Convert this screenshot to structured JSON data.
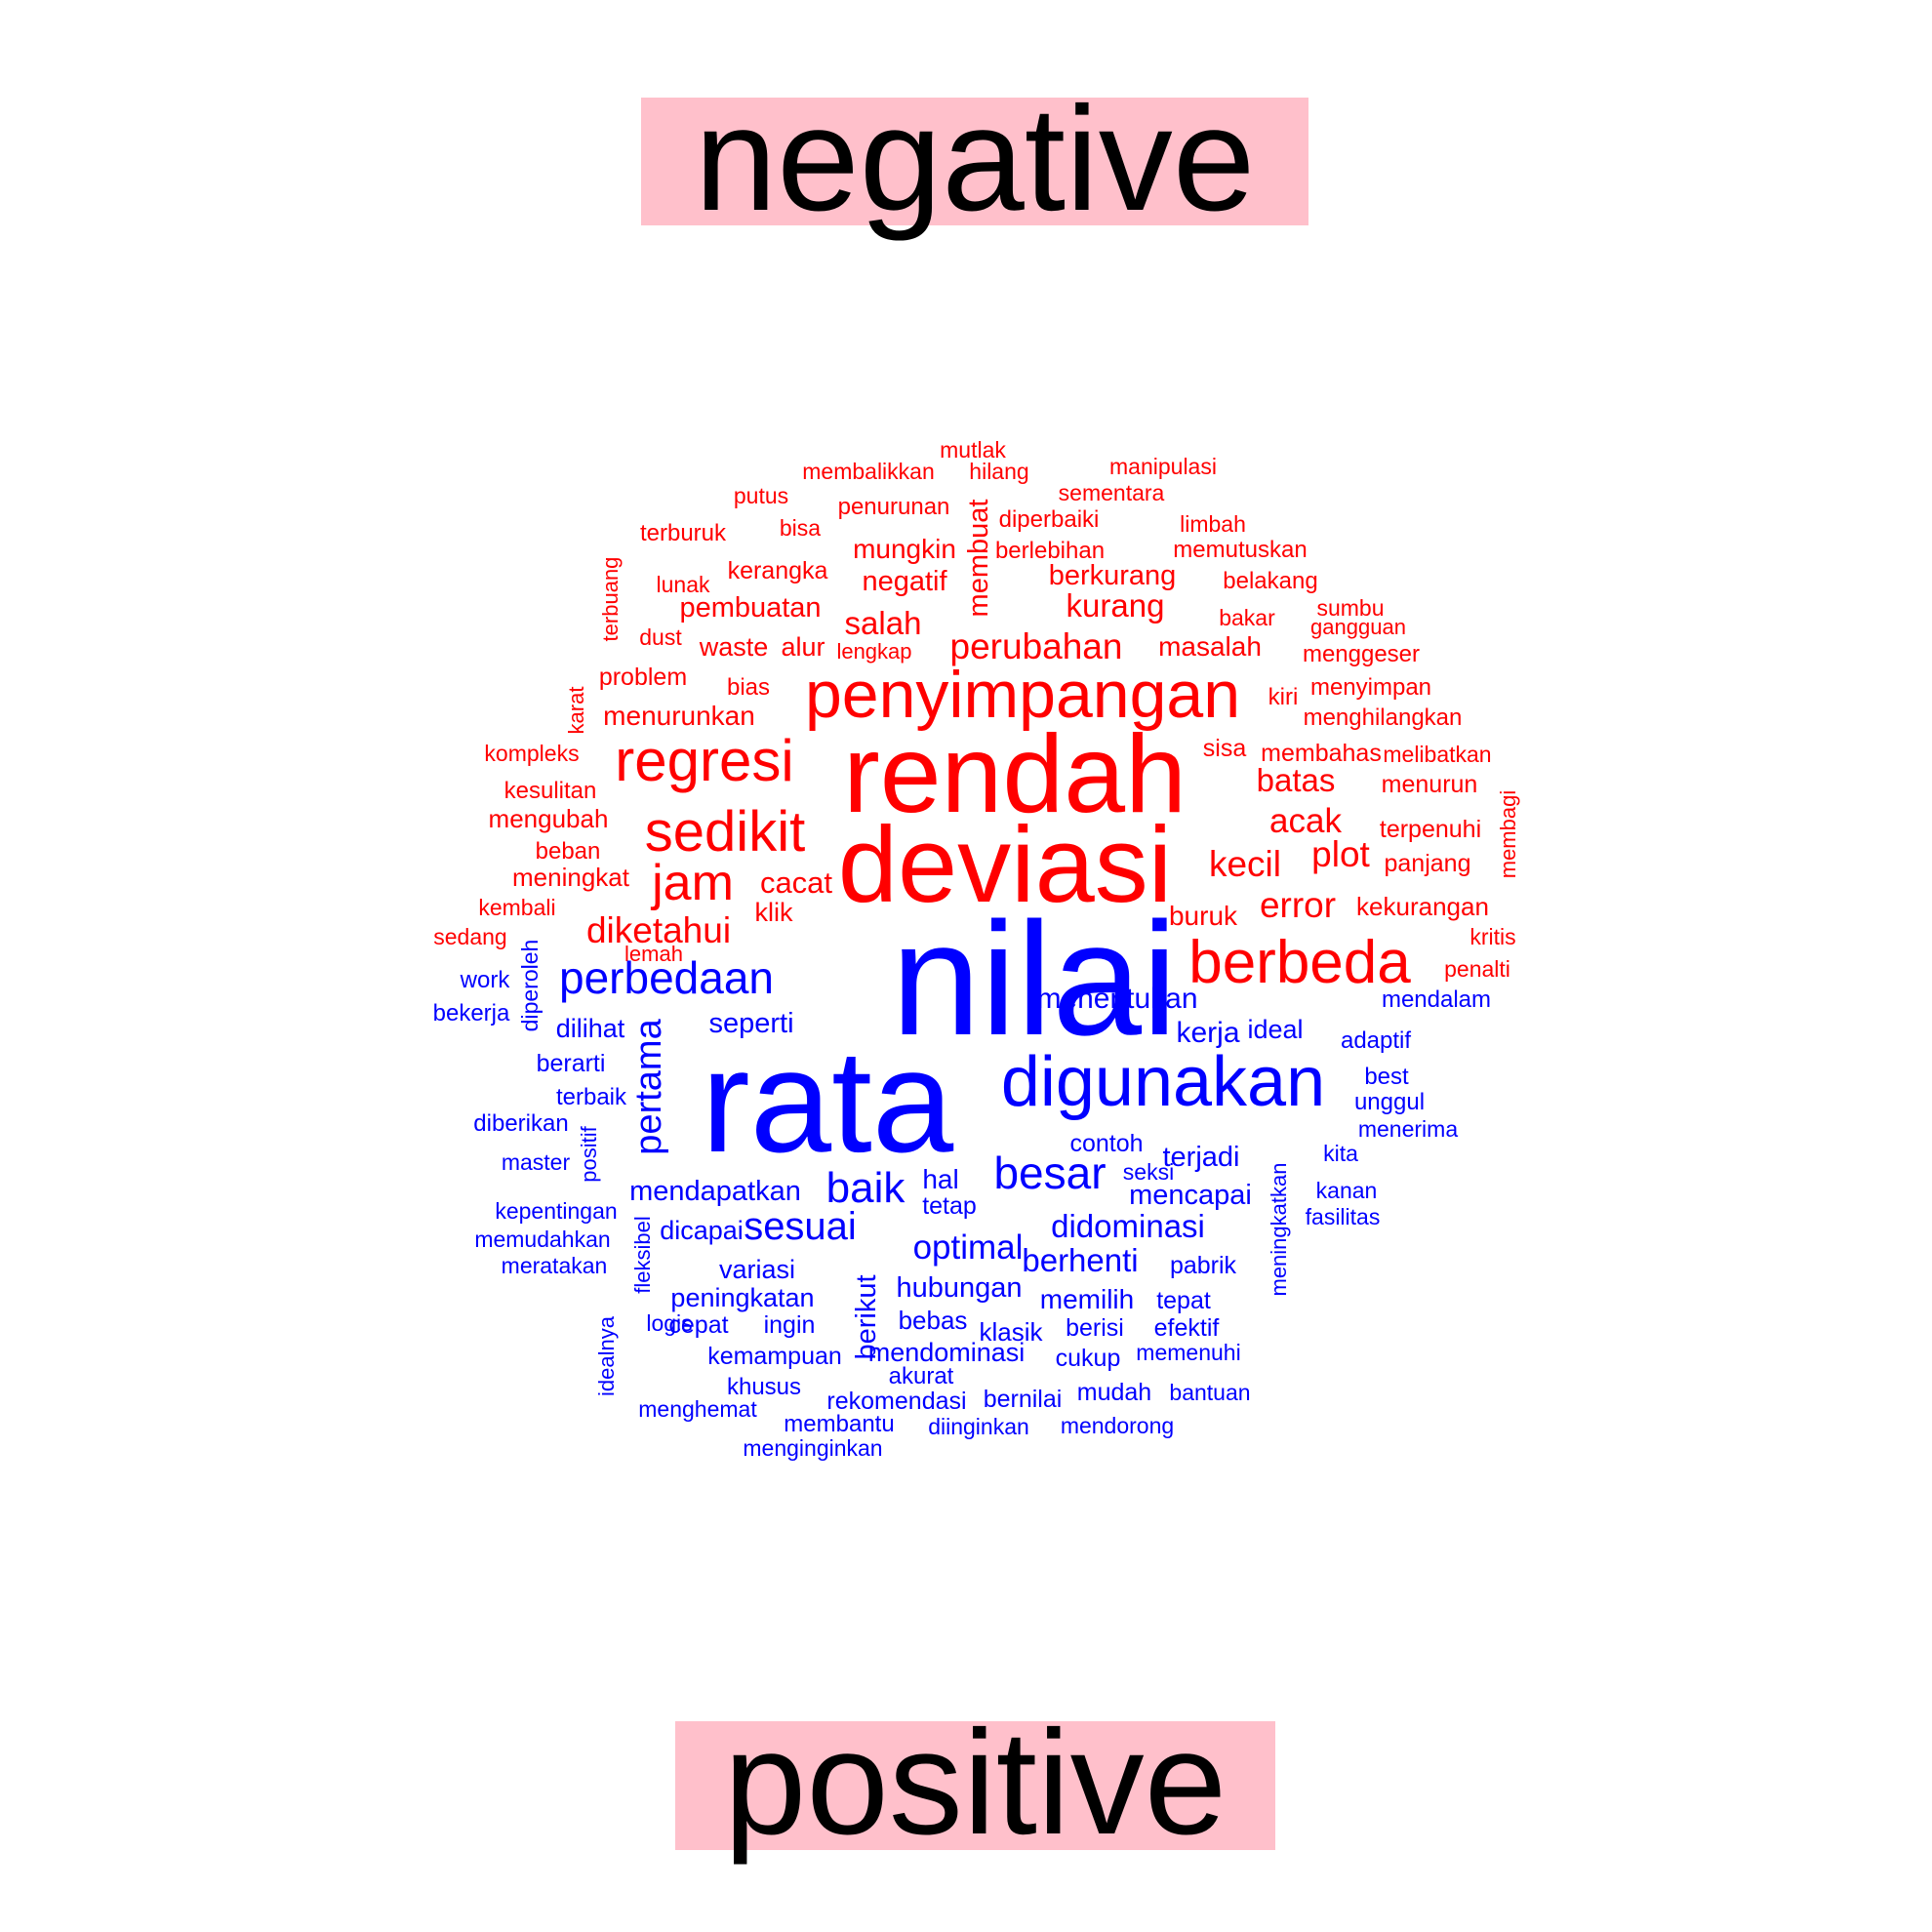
{
  "colors": {
    "negative": "#ff0000",
    "positive": "#0000ff",
    "label_bg": "#ffc0cb"
  },
  "chart_data": {
    "type": "wordcloud",
    "groups": [
      {
        "name": "negative",
        "color": "#ff0000"
      },
      {
        "name": "positive",
        "color": "#0000ff"
      }
    ],
    "words": [
      {
        "t": "rendah",
        "g": "negative",
        "w": 100
      },
      {
        "t": "deviasi",
        "g": "negative",
        "w": 97
      },
      {
        "t": "penyimpangan",
        "g": "negative",
        "w": 68
      },
      {
        "t": "regresi",
        "g": "negative",
        "w": 60
      },
      {
        "t": "sedikit",
        "g": "negative",
        "w": 58
      },
      {
        "t": "berbeda",
        "g": "negative",
        "w": 60
      },
      {
        "t": "jam",
        "g": "negative",
        "w": 50
      },
      {
        "t": "perubahan",
        "g": "negative",
        "w": 35
      },
      {
        "t": "kecil",
        "g": "negative",
        "w": 35
      },
      {
        "t": "plot",
        "g": "negative",
        "w": 35
      },
      {
        "t": "diketahui",
        "g": "negative",
        "w": 35
      },
      {
        "t": "error",
        "g": "negative",
        "w": 35
      },
      {
        "t": "acak",
        "g": "negative",
        "w": 33
      },
      {
        "t": "batas",
        "g": "negative",
        "w": 30
      },
      {
        "t": "salah",
        "g": "negative",
        "w": 30
      },
      {
        "t": "kurang",
        "g": "negative",
        "w": 30
      },
      {
        "t": "cacat",
        "g": "negative",
        "w": 29
      },
      {
        "t": "negatif",
        "g": "negative",
        "w": 27
      },
      {
        "t": "berkurang",
        "g": "negative",
        "w": 27
      },
      {
        "t": "membuat",
        "g": "negative",
        "w": 27
      },
      {
        "t": "mungkin",
        "g": "negative",
        "w": 26
      },
      {
        "t": "pembuatan",
        "g": "negative",
        "w": 27
      },
      {
        "t": "masalah",
        "g": "negative",
        "w": 26
      },
      {
        "t": "menurunkan",
        "g": "negative",
        "w": 26
      },
      {
        "t": "buruk",
        "g": "negative",
        "w": 26
      },
      {
        "t": "waste",
        "g": "negative",
        "w": 25
      },
      {
        "t": "alur",
        "g": "negative",
        "w": 25
      },
      {
        "t": "klik",
        "g": "negative",
        "w": 25
      },
      {
        "t": "meningkat",
        "g": "negative",
        "w": 24
      },
      {
        "t": "mengubah",
        "g": "negative",
        "w": 24
      },
      {
        "t": "kekurangan",
        "g": "negative",
        "w": 24
      },
      {
        "t": "sisa",
        "g": "negative",
        "w": 23
      },
      {
        "t": "membahas",
        "g": "negative",
        "w": 23
      },
      {
        "t": "problem",
        "g": "negative",
        "w": 23
      },
      {
        "t": "kerangka",
        "g": "negative",
        "w": 23
      },
      {
        "t": "menurun",
        "g": "negative",
        "w": 23
      },
      {
        "t": "terpenuhi",
        "g": "negative",
        "w": 23
      },
      {
        "t": "panjang",
        "g": "negative",
        "w": 23
      },
      {
        "t": "menyimpan",
        "g": "negative",
        "w": 22
      },
      {
        "t": "menghilangkan",
        "g": "negative",
        "w": 22
      },
      {
        "t": "menggeser",
        "g": "negative",
        "w": 22
      },
      {
        "t": "bias",
        "g": "negative",
        "w": 22
      },
      {
        "t": "kiri",
        "g": "negative",
        "w": 22
      },
      {
        "t": "berlebihan",
        "g": "negative",
        "w": 22
      },
      {
        "t": "memutuskan",
        "g": "negative",
        "w": 22
      },
      {
        "t": "belakang",
        "g": "negative",
        "w": 22
      },
      {
        "t": "beban",
        "g": "negative",
        "w": 22
      },
      {
        "t": "diperbaiki",
        "g": "negative",
        "w": 22
      },
      {
        "t": "penurunan",
        "g": "negative",
        "w": 22
      },
      {
        "t": "terburuk",
        "g": "negative",
        "w": 22
      },
      {
        "t": "kesulitan",
        "g": "negative",
        "w": 22
      },
      {
        "t": "bakar",
        "g": "negative",
        "w": 21
      },
      {
        "t": "limbah",
        "g": "negative",
        "w": 21
      },
      {
        "t": "sementara",
        "g": "negative",
        "w": 21
      },
      {
        "t": "membalikkan",
        "g": "negative",
        "w": 21
      },
      {
        "t": "manipulasi",
        "g": "negative",
        "w": 21
      },
      {
        "t": "hilang",
        "g": "negative",
        "w": 21
      },
      {
        "t": "mutlak",
        "g": "negative",
        "w": 21
      },
      {
        "t": "putus",
        "g": "negative",
        "w": 21
      },
      {
        "t": "bisa",
        "g": "negative",
        "w": 21
      },
      {
        "t": "lunak",
        "g": "negative",
        "w": 21
      },
      {
        "t": "dust",
        "g": "negative",
        "w": 21
      },
      {
        "t": "lengkap",
        "g": "negative",
        "w": 21
      },
      {
        "t": "sumbu",
        "g": "negative",
        "w": 21
      },
      {
        "t": "gangguan",
        "g": "negative",
        "w": 21
      },
      {
        "t": "kompleks",
        "g": "negative",
        "w": 21
      },
      {
        "t": "melibatkan",
        "g": "negative",
        "w": 21
      },
      {
        "t": "kembali",
        "g": "negative",
        "w": 21
      },
      {
        "t": "sedang",
        "g": "negative",
        "w": 21
      },
      {
        "t": "kritis",
        "g": "negative",
        "w": 21
      },
      {
        "t": "penalti",
        "g": "negative",
        "w": 21
      },
      {
        "t": "lemah",
        "g": "negative",
        "w": 20
      },
      {
        "t": "karat",
        "g": "negative",
        "w": 20
      },
      {
        "t": "terbuang",
        "g": "negative",
        "w": 20
      },
      {
        "t": "membagi",
        "g": "negative",
        "w": 20
      },
      {
        "t": "nilai",
        "g": "positive",
        "w": 170
      },
      {
        "t": "rata",
        "g": "positive",
        "w": 150
      },
      {
        "t": "digunakan",
        "g": "positive",
        "w": 70
      },
      {
        "t": "perbedaan",
        "g": "positive",
        "w": 45
      },
      {
        "t": "besar",
        "g": "positive",
        "w": 45
      },
      {
        "t": "baik",
        "g": "positive",
        "w": 42
      },
      {
        "t": "sesuai",
        "g": "positive",
        "w": 38
      },
      {
        "t": "pertama",
        "g": "positive",
        "w": 37
      },
      {
        "t": "optimal",
        "g": "positive",
        "w": 33
      },
      {
        "t": "didominasi",
        "g": "positive",
        "w": 30
      },
      {
        "t": "berhenti",
        "g": "positive",
        "w": 30
      },
      {
        "t": "menentukan",
        "g": "positive",
        "w": 28
      },
      {
        "t": "kerja",
        "g": "positive",
        "w": 28
      },
      {
        "t": "seperti",
        "g": "positive",
        "w": 27
      },
      {
        "t": "mendapatkan",
        "g": "positive",
        "w": 27
      },
      {
        "t": "terjadi",
        "g": "positive",
        "w": 27
      },
      {
        "t": "mencapai",
        "g": "positive",
        "w": 27
      },
      {
        "t": "hubungan",
        "g": "positive",
        "w": 27
      },
      {
        "t": "berikut",
        "g": "positive",
        "w": 27
      },
      {
        "t": "memilih",
        "g": "positive",
        "w": 26
      },
      {
        "t": "hal",
        "g": "positive",
        "w": 26
      },
      {
        "t": "variasi",
        "g": "positive",
        "w": 25
      },
      {
        "t": "peningkatan",
        "g": "positive",
        "w": 25
      },
      {
        "t": "dicapai",
        "g": "positive",
        "w": 25
      },
      {
        "t": "mendominasi",
        "g": "positive",
        "w": 25
      },
      {
        "t": "dilihat",
        "g": "positive",
        "w": 25
      },
      {
        "t": "ideal",
        "g": "positive",
        "w": 25
      },
      {
        "t": "klasik",
        "g": "positive",
        "w": 24
      },
      {
        "t": "bebas",
        "g": "positive",
        "w": 24
      },
      {
        "t": "berarti",
        "g": "positive",
        "w": 23
      },
      {
        "t": "cepat",
        "g": "positive",
        "w": 23
      },
      {
        "t": "ingin",
        "g": "positive",
        "w": 23
      },
      {
        "t": "berisi",
        "g": "positive",
        "w": 23
      },
      {
        "t": "efektif",
        "g": "positive",
        "w": 23
      },
      {
        "t": "tetap",
        "g": "positive",
        "w": 23
      },
      {
        "t": "tepat",
        "g": "positive",
        "w": 23
      },
      {
        "t": "pabrik",
        "g": "positive",
        "w": 23
      },
      {
        "t": "contoh",
        "g": "positive",
        "w": 23
      },
      {
        "t": "kemampuan",
        "g": "positive",
        "w": 23
      },
      {
        "t": "rekomendasi",
        "g": "positive",
        "w": 23
      },
      {
        "t": "bernilai",
        "g": "positive",
        "w": 23
      },
      {
        "t": "mudah",
        "g": "positive",
        "w": 23
      },
      {
        "t": "cukup",
        "g": "positive",
        "w": 23
      },
      {
        "t": "akurat",
        "g": "positive",
        "w": 22
      },
      {
        "t": "khusus",
        "g": "positive",
        "w": 22
      },
      {
        "t": "membantu",
        "g": "positive",
        "w": 22
      },
      {
        "t": "terbaik",
        "g": "positive",
        "w": 22
      },
      {
        "t": "diberikan",
        "g": "positive",
        "w": 22
      },
      {
        "t": "work",
        "g": "positive",
        "w": 22
      },
      {
        "t": "bekerja",
        "g": "positive",
        "w": 22
      },
      {
        "t": "diperoleh",
        "g": "positive",
        "w": 22
      },
      {
        "t": "adaptif",
        "g": "positive",
        "w": 22
      },
      {
        "t": "best",
        "g": "positive",
        "w": 22
      },
      {
        "t": "unggul",
        "g": "positive",
        "w": 22
      },
      {
        "t": "mendalam",
        "g": "positive",
        "w": 22
      },
      {
        "t": "menerima",
        "g": "positive",
        "w": 21
      },
      {
        "t": "seksi",
        "g": "positive",
        "w": 21
      },
      {
        "t": "kita",
        "g": "positive",
        "w": 21
      },
      {
        "t": "kanan",
        "g": "positive",
        "w": 21
      },
      {
        "t": "fasilitas",
        "g": "positive",
        "w": 21
      },
      {
        "t": "memenuhi",
        "g": "positive",
        "w": 21
      },
      {
        "t": "bantuan",
        "g": "positive",
        "w": 21
      },
      {
        "t": "mendorong",
        "g": "positive",
        "w": 21
      },
      {
        "t": "diinginkan",
        "g": "positive",
        "w": 21
      },
      {
        "t": "menginginkan",
        "g": "positive",
        "w": 21
      },
      {
        "t": "menghemat",
        "g": "positive",
        "w": 21
      },
      {
        "t": "logis",
        "g": "positive",
        "w": 21
      },
      {
        "t": "master",
        "g": "positive",
        "w": 21
      },
      {
        "t": "positif",
        "g": "positive",
        "w": 21
      },
      {
        "t": "kepentingan",
        "g": "positive",
        "w": 21
      },
      {
        "t": "memudahkan",
        "g": "positive",
        "w": 21
      },
      {
        "t": "meratakan",
        "g": "positive",
        "w": 21
      },
      {
        "t": "fleksibel",
        "g": "positive",
        "w": 21
      },
      {
        "t": "idealnya",
        "g": "positive",
        "w": 21
      },
      {
        "t": "meningkatkan",
        "g": "positive",
        "w": 21
      }
    ]
  }
}
